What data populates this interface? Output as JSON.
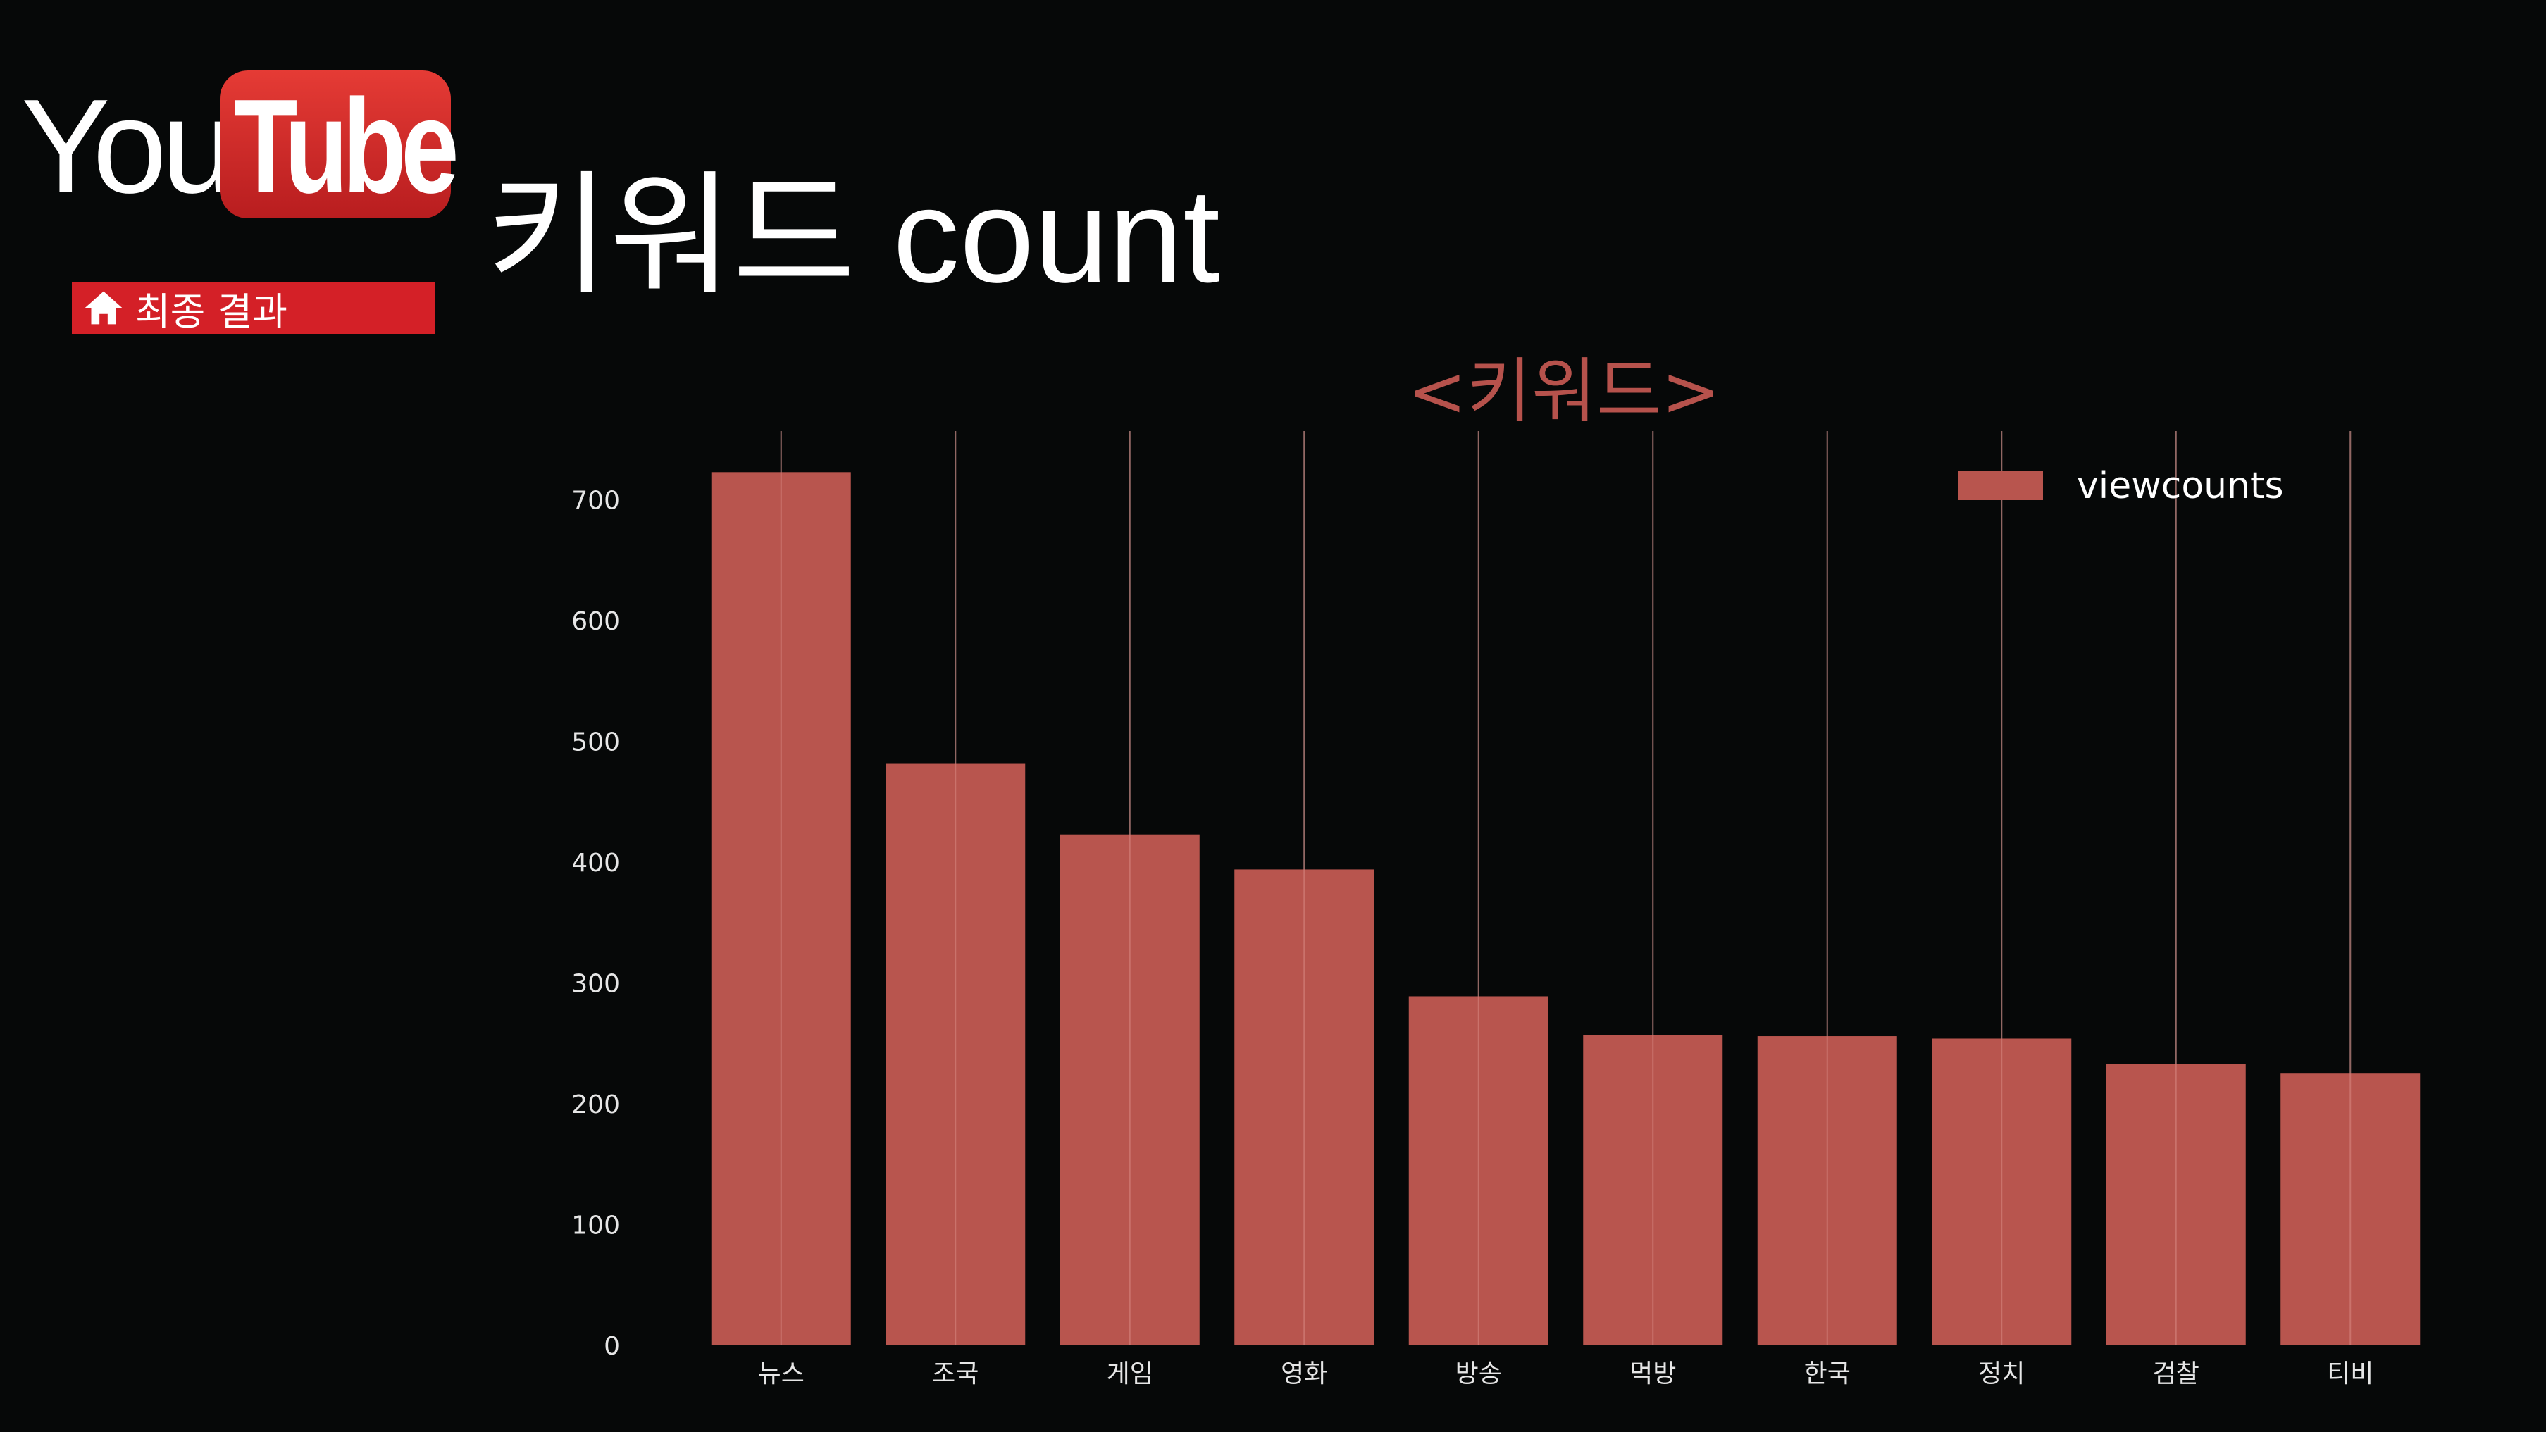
{
  "logo": {
    "you": "You",
    "tube": "Tube",
    "box_color": "#d42027"
  },
  "nav": {
    "label": "최종 결과",
    "icon": "home-icon",
    "color": "#d42027"
  },
  "page_title": "키워드 count",
  "chart_data": {
    "type": "bar",
    "title": "<키워드>",
    "xlabel": "",
    "ylabel": "",
    "categories": [
      "뉴스",
      "조국",
      "게임",
      "영화",
      "방송",
      "먹방",
      "한국",
      "정치",
      "검찰",
      "티비"
    ],
    "series": [
      {
        "name": "viewcounts",
        "values": [
          723,
          482,
          423,
          394,
          289,
          257,
          256,
          254,
          233,
          225
        ],
        "color": "#b8554e"
      }
    ],
    "ylim": [
      0,
      757
    ],
    "yticks": [
      0,
      100,
      200,
      300,
      400,
      500,
      600,
      700
    ],
    "legend": "top-right",
    "grid": "vertical"
  }
}
